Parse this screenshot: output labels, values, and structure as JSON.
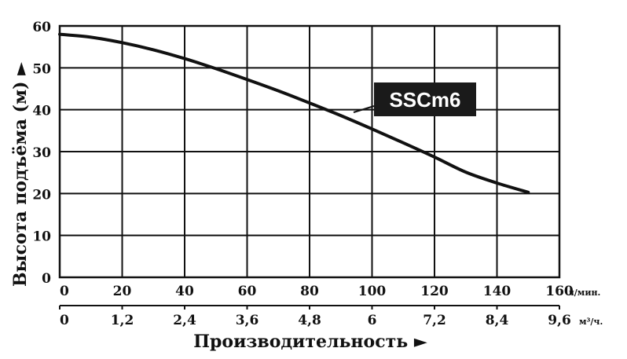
{
  "chart_data": {
    "type": "line",
    "xlabel": "Производительность ►",
    "ylabel": "Высота подъёма (м) ►",
    "x_primary": {
      "unit": "л/мин.",
      "range": [
        0,
        160
      ],
      "ticks": [
        "0",
        "20",
        "40",
        "60",
        "80",
        "100",
        "120",
        "140",
        "160"
      ]
    },
    "x_secondary": {
      "unit": "м³/ч.",
      "range": [
        0,
        9.6
      ],
      "ticks": [
        "0",
        "1,2",
        "2,4",
        "3,6",
        "4,8",
        "6",
        "7,2",
        "8,4",
        "9,6"
      ]
    },
    "ylim": [
      0,
      60
    ],
    "y_ticks": [
      "0",
      "10",
      "20",
      "30",
      "40",
      "50",
      "60"
    ],
    "grid": true,
    "series": [
      {
        "name": "SSCm6",
        "x": [
          0,
          10,
          20,
          30,
          40,
          50,
          60,
          70,
          80,
          90,
          100,
          110,
          120,
          130,
          140,
          150
        ],
        "y": [
          58,
          57.3,
          56,
          54.3,
          52.2,
          49.8,
          47.2,
          44.5,
          41.6,
          38.6,
          35.4,
          32.1,
          28.7,
          25.1,
          22.5,
          20.3
        ]
      }
    ]
  }
}
